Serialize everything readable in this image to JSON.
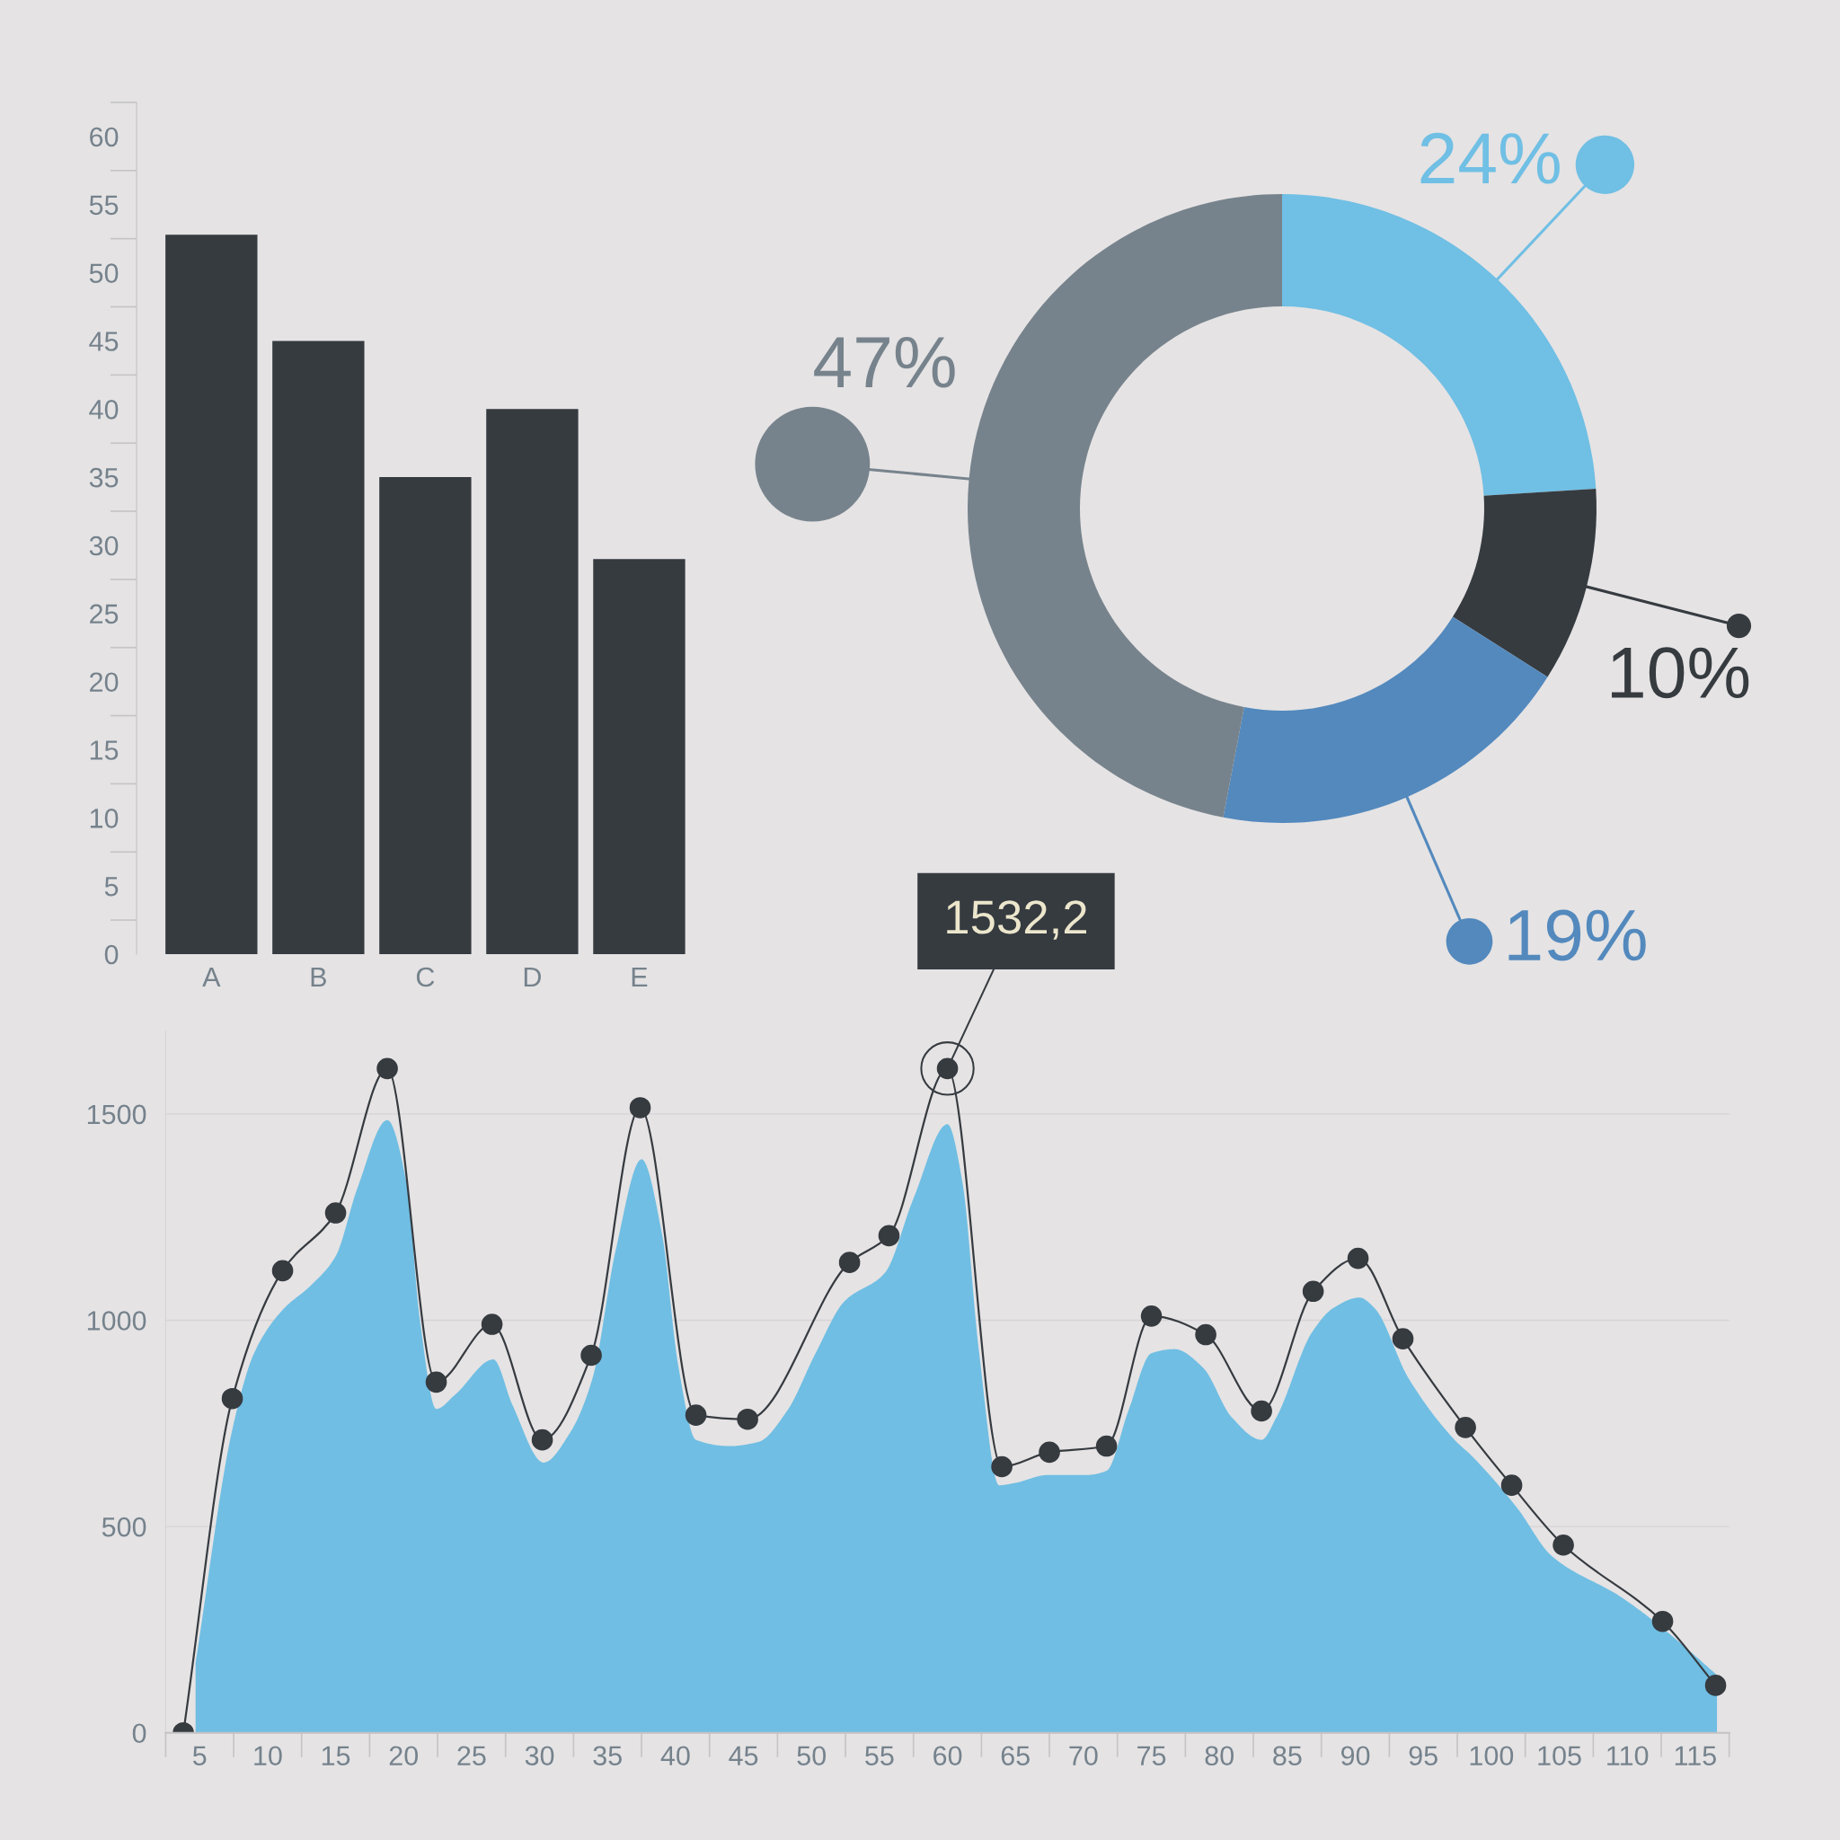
{
  "chart_data": [
    {
      "type": "bar",
      "categories": [
        "A",
        "B",
        "C",
        "D",
        "E"
      ],
      "values": [
        52.8,
        45,
        35,
        40,
        29
      ],
      "color": "#363b40",
      "ylim": [
        0,
        62.5
      ],
      "yticks": [
        0,
        5,
        10,
        15,
        20,
        25,
        30,
        35,
        40,
        45,
        50,
        55,
        60
      ]
    },
    {
      "type": "donut",
      "categories": [
        null,
        null,
        null,
        null
      ],
      "values": [
        24,
        10,
        19,
        47
      ],
      "colors": [
        "#70bfe4",
        "#363b40",
        "#5389bd",
        "#77838c"
      ],
      "value_labels": [
        "24%",
        "10%",
        "19%",
        "47%"
      ]
    },
    {
      "type": "line",
      "series": [
        {
          "type": "area",
          "color": "#70bee3",
          "x": [
            4.7,
            7.4,
            9,
            11.1,
            13.2,
            15,
            16.6,
            18.8,
            20.2,
            21.2,
            22.4,
            23.8,
            26.6,
            28,
            30.3,
            32.2,
            33.9,
            35.6,
            37.5,
            39,
            40.2,
            41.5,
            44,
            46.1,
            48.2,
            50.3,
            52.4,
            55.4,
            57.5,
            60,
            61.1,
            62.3,
            63.8,
            64.9,
            67.4,
            70.3,
            71.7,
            73.3,
            75,
            76.7,
            78.8,
            80.9,
            83.1,
            84.2,
            86.8,
            88.4,
            90.3,
            91.4,
            93.9,
            97.3,
            98.6,
            101.9,
            104.4,
            109.5,
            111.2,
            114,
            116.6
          ],
          "values": [
            170,
            735,
            920,
            1025,
            1085,
            1155,
            1320,
            1485,
            1335,
            1000,
            785,
            820,
            905,
            795,
            655,
            725,
            860,
            1170,
            1390,
            1210,
            890,
            710,
            695,
            705,
            780,
            920,
            1045,
            1115,
            1295,
            1475,
            1335,
            930,
            600,
            605,
            625,
            625,
            635,
            780,
            920,
            930,
            885,
            765,
            710,
            765,
            970,
            1030,
            1055,
            1030,
            860,
            710,
            670,
            545,
            430,
            330,
            290,
            215,
            140
          ]
        },
        {
          "type": "line",
          "color": "#363b40",
          "marker": "circle",
          "x": [
            3.8,
            7.4,
            11.1,
            15,
            18.8,
            22.4,
            26.5,
            30.2,
            33.8,
            37.4,
            41.5,
            45.3,
            52.8,
            55.7,
            60,
            64,
            67.5,
            71.7,
            75,
            79,
            83.1,
            86.9,
            90.2,
            93.5,
            98.1,
            101.5,
            105.3,
            112.6,
            116.5
          ],
          "values": [
            0,
            810,
            1120,
            1260,
            1610,
            850,
            990,
            710,
            915,
            1515,
            770,
            760,
            1140,
            1205,
            1610,
            645,
            680,
            695,
            1010,
            965,
            780,
            1070,
            1150,
            955,
            740,
            600,
            455,
            270,
            115
          ]
        }
      ],
      "xlim": [
        2.5,
        117.5
      ],
      "xticks": [
        5,
        10,
        15,
        20,
        25,
        30,
        35,
        40,
        45,
        50,
        55,
        60,
        65,
        70,
        75,
        80,
        85,
        90,
        95,
        100,
        105,
        110,
        115
      ],
      "ylim": [
        0,
        1700
      ],
      "yticks": [
        0,
        500,
        1000,
        1500
      ],
      "grid": "y",
      "annotations": [
        {
          "text": "1532,2",
          "x": 60,
          "y": 1610
        }
      ]
    }
  ]
}
